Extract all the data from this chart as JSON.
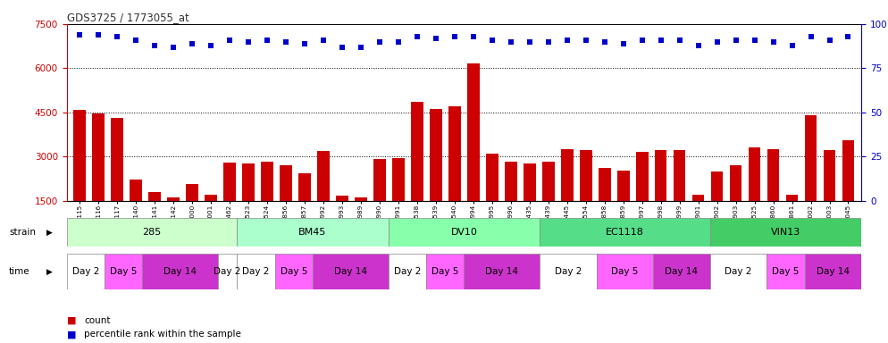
{
  "title": "GDS3725 / 1773055_at",
  "categories": [
    "GSM291115",
    "GSM291116",
    "GSM291117",
    "GSM291140",
    "GSM291141",
    "GSM291142",
    "GSM291000",
    "GSM291001",
    "GSM291462",
    "GSM291523",
    "GSM291524",
    "GSM296856",
    "GSM296857",
    "GSM290992",
    "GSM290993",
    "GSM290989",
    "GSM290990",
    "GSM290991",
    "GSM291538",
    "GSM291539",
    "GSM291540",
    "GSM290994",
    "GSM290995",
    "GSM290996",
    "GSM291435",
    "GSM291439",
    "GSM291445",
    "GSM291554",
    "GSM296858",
    "GSM296859",
    "GSM290997",
    "GSM290998",
    "GSM290999",
    "GSM290901",
    "GSM290902",
    "GSM290903",
    "GSM291525",
    "GSM296860",
    "GSM296861",
    "GSM291002",
    "GSM291003",
    "GSM292045"
  ],
  "counts": [
    4580,
    4450,
    4300,
    2230,
    1780,
    1600,
    2080,
    1700,
    2800,
    2750,
    2820,
    2700,
    2430,
    3200,
    1680,
    1620,
    2900,
    2950,
    4850,
    4600,
    4700,
    6150,
    3100,
    2820,
    2750,
    2830,
    3250,
    3230,
    2610,
    2520,
    3150,
    3220,
    3220,
    1700,
    2500,
    2700,
    3300,
    3250,
    1700,
    4400,
    3220,
    3550
  ],
  "percentile": [
    94,
    94,
    93,
    91,
    88,
    87,
    89,
    88,
    91,
    90,
    91,
    90,
    89,
    91,
    87,
    87,
    90,
    90,
    93,
    92,
    93,
    93,
    91,
    90,
    90,
    90,
    91,
    91,
    90,
    89,
    91,
    91,
    91,
    88,
    90,
    91,
    91,
    90,
    88,
    93,
    91,
    93
  ],
  "bar_color": "#CC0000",
  "dot_color": "#0000CC",
  "ylim_left": [
    1500,
    7500
  ],
  "ylim_right": [
    0,
    100
  ],
  "yticks_left": [
    1500,
    3000,
    4500,
    6000,
    7500
  ],
  "yticks_right": [
    0,
    25,
    50,
    75,
    100
  ],
  "grid_values": [
    3000,
    4500,
    6000
  ],
  "strains": [
    {
      "label": "285",
      "start": 0,
      "end": 9,
      "color": "#ccffcc"
    },
    {
      "label": "BM45",
      "start": 9,
      "end": 17,
      "color": "#aaffbb"
    },
    {
      "label": "DV10",
      "start": 17,
      "end": 25,
      "color": "#77ee99"
    },
    {
      "label": "EC1118",
      "start": 25,
      "end": 34,
      "color": "#55dd77"
    },
    {
      "label": "VIN13",
      "start": 34,
      "end": 42,
      "color": "#33cc55"
    }
  ],
  "time_assignments": [
    "Day 2",
    "Day 2",
    "Day 5",
    "Day 5",
    "Day 14",
    "Day 14",
    "Day 14",
    "Day 14",
    "Day 2",
    "Day 2",
    "Day 2",
    "Day 5",
    "Day 5",
    "Day 14",
    "Day 14",
    "Day 14",
    "Day 14",
    "Day 2",
    "Day 2",
    "Day 5",
    "Day 5",
    "Day 14",
    "Day 14",
    "Day 14",
    "Day 14",
    "Day 2",
    "Day 2",
    "Day 2",
    "Day 5",
    "Day 5",
    "Day 5",
    "Day 14",
    "Day 14",
    "Day 14",
    "Day 2",
    "Day 2",
    "Day 2",
    "Day 5",
    "Day 5",
    "Day 14",
    "Day 14",
    "Day 14"
  ],
  "time_color_map": {
    "Day 2": "#ffffff",
    "Day 5": "#ff66ff",
    "Day 14": "#cc33cc"
  },
  "background_color": "#ffffff",
  "axis_color_left": "#CC0000",
  "axis_color_right": "#0000CC"
}
